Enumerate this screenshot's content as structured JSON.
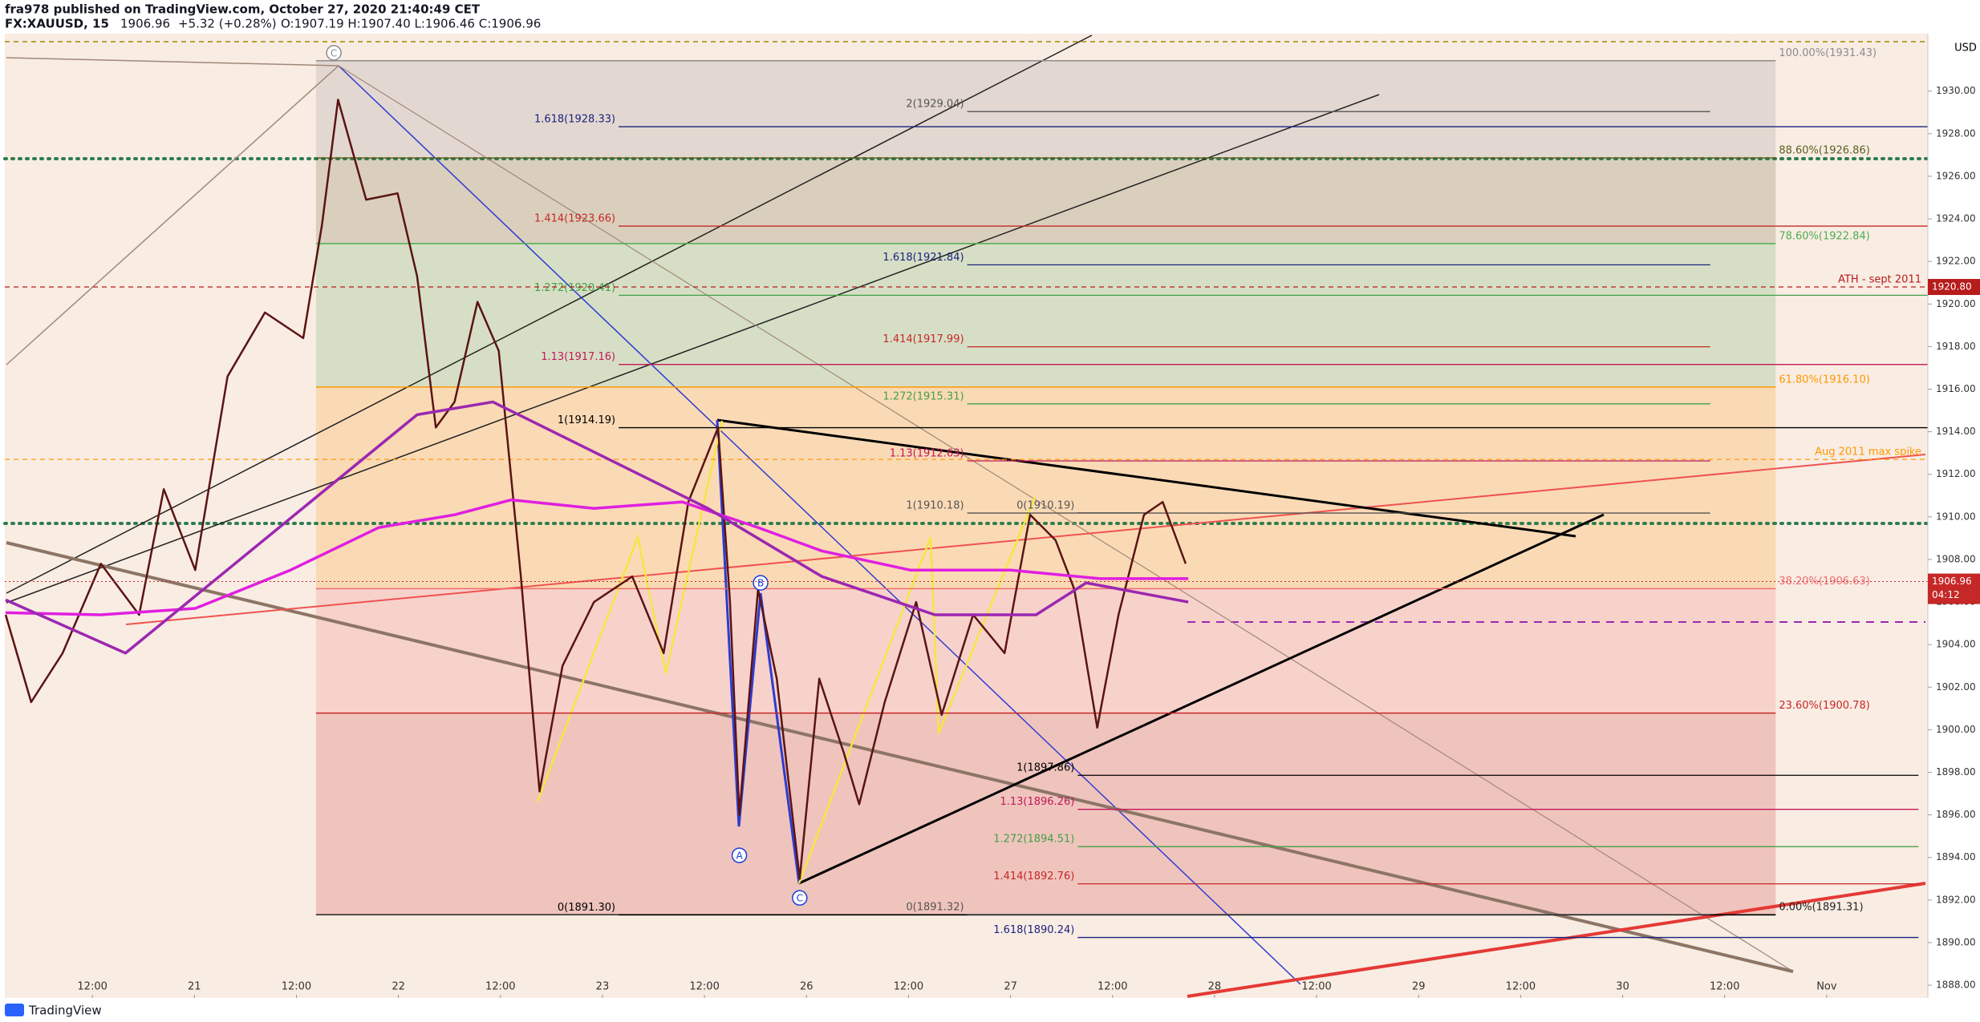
{
  "header": {
    "published": "fra978 published on TradingView.com, October 27, 2020 21:40:49 CET",
    "symbol": "FX:XAUUSD, 15",
    "last": "1906.96",
    "change": "+5.32 (+0.28%)",
    "ohlc": "O:1907.19 H:1907.40 L:1906.46 C:1906.96",
    "currency": "USD",
    "brand": "TradingView"
  },
  "chart_data": {
    "type": "line",
    "xlim": [
      1.7,
      227.9
    ],
    "ylim": [
      1887.4,
      1932.7
    ],
    "grid": false,
    "xticks": [
      {
        "value": 12,
        "label": "12:00"
      },
      {
        "value": 24,
        "label": "21"
      },
      {
        "value": 36,
        "label": "12:00"
      },
      {
        "value": 48,
        "label": "22"
      },
      {
        "value": 60,
        "label": "12:00"
      },
      {
        "value": 72,
        "label": "23"
      },
      {
        "value": 84,
        "label": "12:00"
      },
      {
        "value": 96,
        "label": "26"
      },
      {
        "value": 108,
        "label": "12:00"
      },
      {
        "value": 120,
        "label": "27"
      },
      {
        "value": 132,
        "label": "12:00"
      },
      {
        "value": 144,
        "label": "28"
      },
      {
        "value": 156,
        "label": "12:00"
      },
      {
        "value": 168,
        "label": "29"
      },
      {
        "value": 180,
        "label": "12:00"
      },
      {
        "value": 192,
        "label": "30"
      },
      {
        "value": 204,
        "label": "12:00"
      },
      {
        "value": 216,
        "label": "Nov"
      }
    ],
    "yticks": [
      {
        "value": 1888,
        "label": "1888.00"
      },
      {
        "value": 1890,
        "label": "1890.00"
      },
      {
        "value": 1892,
        "label": "1892.00"
      },
      {
        "value": 1894,
        "label": "1894.00"
      },
      {
        "value": 1896,
        "label": "1896.00"
      },
      {
        "value": 1898,
        "label": "1898.00"
      },
      {
        "value": 1900,
        "label": "1900.00"
      },
      {
        "value": 1902,
        "label": "1902.00"
      },
      {
        "value": 1904,
        "label": "1904.00"
      },
      {
        "value": 1906,
        "label": "1906.00"
      },
      {
        "value": 1908,
        "label": "1908.00"
      },
      {
        "value": 1910,
        "label": "1910.00"
      },
      {
        "value": 1912,
        "label": "1912.00"
      },
      {
        "value": 1914,
        "label": "1914.00"
      },
      {
        "value": 1916,
        "label": "1916.00"
      },
      {
        "value": 1918,
        "label": "1918.00"
      },
      {
        "value": 1920,
        "label": "1920.00"
      },
      {
        "value": 1922,
        "label": "1922.00"
      },
      {
        "value": 1924,
        "label": "1924.00"
      },
      {
        "value": 1926,
        "label": "1926.00"
      },
      {
        "value": 1928,
        "label": "1928.00"
      },
      {
        "value": 1930,
        "label": "1930.00"
      }
    ],
    "series": [
      {
        "color": "#5a1414",
        "x": [
          1.8,
          4.8,
          8.5,
          13,
          17.5,
          20.4,
          24.1,
          27.9,
          32.3,
          36.8,
          39,
          40.9,
          44.2,
          47.9,
          50.2,
          52.4,
          54.6,
          57.3,
          59.8,
          62.4,
          64.6,
          67.3,
          71,
          75.5,
          79.2,
          82.1,
          85.6,
          87,
          88.1,
          90.3,
          92.5,
          95.2,
          97.5,
          100.4,
          102.2,
          105.2,
          108.9,
          111.9,
          115.6,
          119.3,
          122.3,
          125.3,
          127.5,
          130.2,
          132.7,
          135.7,
          137.9,
          140.6
        ],
        "values": [
          1905.4,
          1901.3,
          1903.6,
          1907.8,
          1905.4,
          1911.3,
          1907.5,
          1916.6,
          1919.6,
          1918.4,
          1923.7,
          1929.6,
          1924.9,
          1925.2,
          1921.3,
          1914.2,
          1915.4,
          1920.1,
          1917.8,
          1907.2,
          1897.1,
          1903,
          1906,
          1907.2,
          1903.6,
          1910.7,
          1914.2,
          1906,
          1896,
          1906.6,
          1902.4,
          1893,
          1902.4,
          1898.9,
          1896.5,
          1901.3,
          1906,
          1900.7,
          1905.4,
          1903.6,
          1910.1,
          1908.9,
          1906.6,
          1900.1,
          1905.4,
          1910.1,
          1910.7,
          1907.8
        ]
      },
      {
        "color": "#e01fe0",
        "x": [
          1.8,
          13,
          24.1,
          35.3,
          45.7,
          54.6,
          61.3,
          71,
          81.4,
          90.3,
          97.8,
          108.2,
          120,
          130.5,
          140.9
        ],
        "values": [
          1905.5,
          1905.4,
          1905.7,
          1907.5,
          1909.5,
          1910.1,
          1910.8,
          1910.4,
          1910.7,
          1909.5,
          1908.4,
          1907.5,
          1907.5,
          1907.1,
          1907.1
        ]
      },
      {
        "color": "#9c27b0",
        "x": [
          1.8,
          15.9,
          50.2,
          59.1,
          84.4,
          97.8,
          111.1,
          123,
          128.9,
          140.9
        ],
        "values": [
          1906.1,
          1903.6,
          1914.8,
          1915.4,
          1910.4,
          1907.2,
          1905.4,
          1905.4,
          1906.9,
          1906
        ]
      }
    ],
    "retracement_x": [
      38.3,
      210
    ],
    "retracements": [
      {
        "label": "100.00%(1931.43)",
        "level": 1931.43,
        "color": "#8d8d8d"
      },
      {
        "label": "88.60%(1926.86)",
        "level": 1926.86,
        "color": "#5f5f22"
      },
      {
        "label": "78.60%(1922.84)",
        "level": 1922.84,
        "color": "#4caf50"
      },
      {
        "label": "61.80%(1916.10)",
        "level": 1916.1,
        "color": "#ff9800"
      },
      {
        "label": "38.20%(1906.63)",
        "level": 1906.63,
        "color": "#ef6c6c"
      },
      {
        "label": "23.60%(1900.78)",
        "level": 1900.78,
        "color": "#c62828"
      },
      {
        "label": "0.00%(1891.31)",
        "level": 1891.31,
        "color": "#222222"
      }
    ],
    "extensions": [
      {
        "label": "1.618(1928.33)",
        "level": 1928.33,
        "color": "#1a237e",
        "x": [
          73.9,
          227.9
        ]
      },
      {
        "label": "1.414(1923.66)",
        "level": 1923.66,
        "color": "#c62828",
        "x": [
          73.9,
          227.9
        ]
      },
      {
        "label": "1.272(1920.41)",
        "level": 1920.41,
        "color": "#43a047",
        "x": [
          73.9,
          227.9
        ]
      },
      {
        "label": "1.13(1917.16)",
        "level": 1917.16,
        "color": "#c2185b",
        "x": [
          73.9,
          227.9
        ]
      },
      {
        "label": "1(1914.19)",
        "level": 1914.19,
        "color": "#000000",
        "x": [
          73.9,
          227.9
        ]
      },
      {
        "label": "0(1891.30)",
        "level": 1891.3,
        "color": "#000000",
        "x": [
          73.9,
          210
        ]
      },
      {
        "label": "2(1929.04)",
        "level": 1929.04,
        "color": "#555555",
        "x": [
          114.9,
          202.3
        ]
      },
      {
        "label": "1.618(1921.84)",
        "level": 1921.84,
        "color": "#1a237e",
        "x": [
          114.9,
          202.3
        ]
      },
      {
        "label": "1.414(1917.99)",
        "level": 1917.99,
        "color": "#c62828",
        "x": [
          114.9,
          202.3
        ]
      },
      {
        "label": "1.272(1915.31)",
        "level": 1915.31,
        "color": "#43a047",
        "x": [
          114.9,
          202.3
        ]
      },
      {
        "label": "1.13(1912.63)",
        "level": 1912.63,
        "color": "#c2185b",
        "x": [
          114.9,
          202.3
        ]
      },
      {
        "label": "1(1910.18)",
        "level": 1910.18,
        "color": "#555555",
        "x": [
          114.9,
          202.3
        ]
      },
      {
        "label": "0(1891.32)",
        "level": 1891.32,
        "color": "#555555",
        "x": [
          114.9,
          202.3
        ]
      },
      {
        "label": "0(1910.19)",
        "level": 1910.19,
        "color": "#555555",
        "x": [
          127.9,
          136
        ]
      },
      {
        "label": "1(1897.86)",
        "level": 1897.86,
        "color": "#000000",
        "x": [
          127.9,
          226.8
        ]
      },
      {
        "label": "1.13(1896.26)",
        "level": 1896.26,
        "color": "#c2185b",
        "x": [
          127.9,
          226.8
        ]
      },
      {
        "label": "1.272(1894.51)",
        "level": 1894.51,
        "color": "#43a047",
        "x": [
          127.9,
          226.8
        ]
      },
      {
        "label": "1.414(1892.76)",
        "level": 1892.76,
        "color": "#c62828",
        "x": [
          127.9,
          226.8
        ]
      },
      {
        "label": "1.618(1890.24)",
        "level": 1890.24,
        "color": "#1a237e",
        "x": [
          127.9,
          226.8
        ]
      }
    ],
    "levels": [
      {
        "label": "ATH - sept 2011",
        "level": 1920.8,
        "price_label": "1920.80",
        "color": "#b71c1c"
      },
      {
        "label": "Aug 2011 max spike",
        "level": 1912.7,
        "color": "#ff9800"
      }
    ],
    "waves": [
      {
        "label": "A",
        "x": 88.1,
        "y": 1894.1,
        "color": "#1a3fd6"
      },
      {
        "label": "B",
        "x": 90.6,
        "y": 1906.9,
        "color": "#1a3fd6"
      },
      {
        "label": "C",
        "x": 95.2,
        "y": 1892.1,
        "color": "#1a3fd6"
      },
      {
        "label": "C",
        "x": 40.4,
        "y": 1931.8,
        "color": "#8d8d8d"
      }
    ],
    "last": {
      "value": 1906.96,
      "countdown": "04:12",
      "color": "#c62828"
    }
  }
}
